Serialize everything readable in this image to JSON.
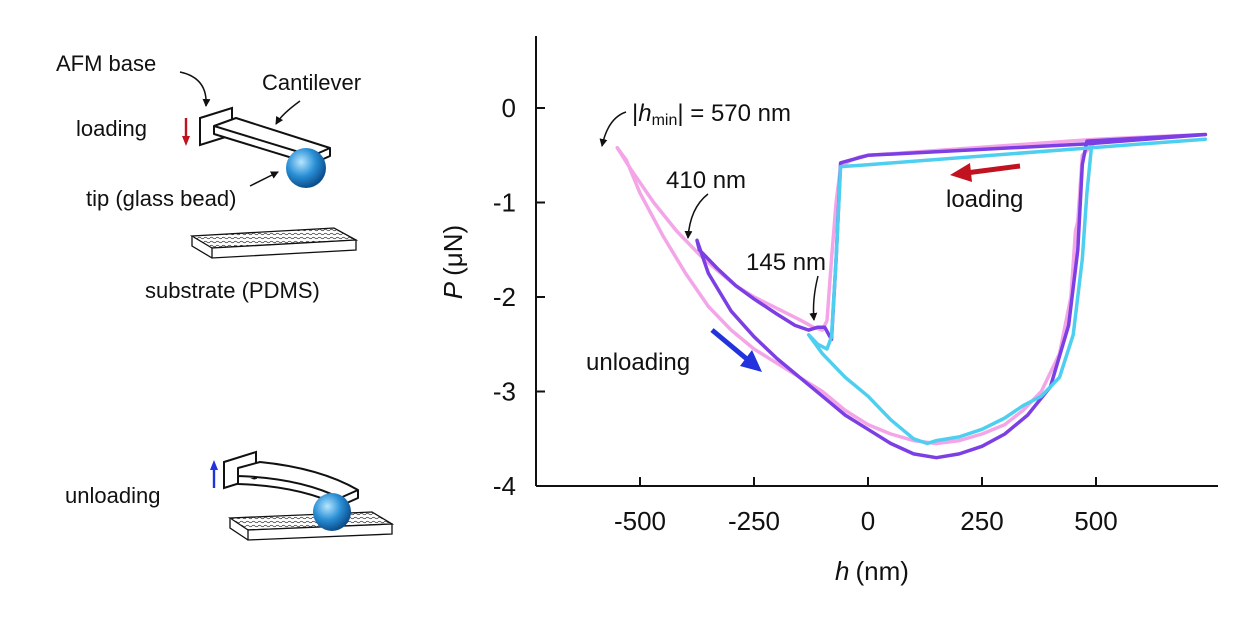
{
  "schematic": {
    "afm_base": "AFM base",
    "cantilever": "Cantilever",
    "loading": "loading",
    "tip": "tip (glass bead)",
    "substrate": "substrate (PDMS)",
    "unloading": "unloading",
    "colors": {
      "bead": "#2a8fd6",
      "loading_arrow": "#c1121f",
      "unloading_arrow": "#2233dd"
    }
  },
  "chart_data": {
    "type": "line",
    "xlabel_var": "h",
    "xlabel_unit": "(nm)",
    "ylabel_var": "P",
    "ylabel_unit": "(μN)",
    "xlim": [
      -600,
      740
    ],
    "ylim": [
      -4,
      0.8
    ],
    "xticks": [
      -500,
      -250,
      0,
      250,
      500
    ],
    "yticks": [
      0,
      -1,
      -2,
      -3,
      -4
    ],
    "grid": false,
    "series": [
      {
        "color": "#f4a5e8",
        "x": [
          740,
          500,
          470,
          460,
          455,
          445,
          420,
          380,
          340,
          300,
          250,
          200,
          150,
          100,
          50,
          0,
          -50,
          -100,
          -150,
          -200,
          -250,
          -300,
          -350,
          -400,
          -450,
          -500,
          -530,
          -550,
          -520,
          -470,
          -420,
          -370,
          -330,
          -290,
          -250,
          -200,
          -150,
          -120,
          -100,
          -90,
          -80,
          -70,
          -60,
          -40,
          -20,
          0,
          500,
          740
        ],
        "y": [
          -0.28,
          -0.35,
          -0.5,
          -1.2,
          -1.3,
          -2.0,
          -2.6,
          -3.0,
          -3.2,
          -3.35,
          -3.45,
          -3.52,
          -3.55,
          -3.52,
          -3.45,
          -3.35,
          -3.2,
          -3.0,
          -2.85,
          -2.7,
          -2.55,
          -2.35,
          -2.1,
          -1.75,
          -1.35,
          -0.9,
          -0.55,
          -0.42,
          -0.65,
          -1.0,
          -1.3,
          -1.55,
          -1.72,
          -1.88,
          -2.0,
          -2.12,
          -2.24,
          -2.32,
          -2.35,
          -2.25,
          -1.6,
          -1.0,
          -0.62,
          -0.56,
          -0.52,
          -0.5,
          -0.33,
          -0.28
        ]
      },
      {
        "color": "#7b3fe4",
        "x": [
          740,
          480,
          470,
          460,
          440,
          400,
          350,
          300,
          250,
          200,
          150,
          100,
          50,
          0,
          -50,
          -100,
          -150,
          -200,
          -250,
          -300,
          -350,
          -375,
          -370,
          -330,
          -290,
          -250,
          -200,
          -160,
          -130,
          -110,
          -95,
          -80,
          -70,
          -60,
          0,
          480,
          740
        ],
        "y": [
          -0.28,
          -0.35,
          -0.6,
          -1.5,
          -2.3,
          -2.95,
          -3.25,
          -3.45,
          -3.58,
          -3.66,
          -3.7,
          -3.66,
          -3.55,
          -3.4,
          -3.25,
          -3.05,
          -2.85,
          -2.65,
          -2.42,
          -2.15,
          -1.75,
          -1.4,
          -1.5,
          -1.7,
          -1.88,
          -2.02,
          -2.18,
          -2.3,
          -2.35,
          -2.32,
          -2.32,
          -2.45,
          -1.6,
          -0.58,
          -0.5,
          -0.38,
          -0.28
        ]
      },
      {
        "color": "#4fcff0",
        "x": [
          740,
          490,
          480,
          470,
          450,
          420,
          380,
          340,
          300,
          250,
          200,
          150,
          130,
          100,
          50,
          0,
          -50,
          -100,
          -130,
          -110,
          -90,
          -80,
          -70,
          -60,
          0,
          490,
          740
        ],
        "y": [
          -0.33,
          -0.42,
          -0.9,
          -1.6,
          -2.4,
          -2.85,
          -3.05,
          -3.15,
          -3.28,
          -3.4,
          -3.48,
          -3.52,
          -3.55,
          -3.5,
          -3.3,
          -3.05,
          -2.85,
          -2.6,
          -2.4,
          -2.5,
          -2.55,
          -2.42,
          -1.6,
          -0.62,
          -0.6,
          -0.42,
          -0.33
        ]
      }
    ],
    "annotations": {
      "hmin_prefix": "|",
      "hmin_var": "h",
      "hmin_sub": "min",
      "hmin_rest": "| = 570 nm",
      "a410": "410 nm",
      "a145": "145 nm",
      "loading": "loading",
      "unloading": "unloading"
    },
    "arrow_colors": {
      "loading": "#c1121f",
      "unloading": "#2233dd"
    }
  }
}
